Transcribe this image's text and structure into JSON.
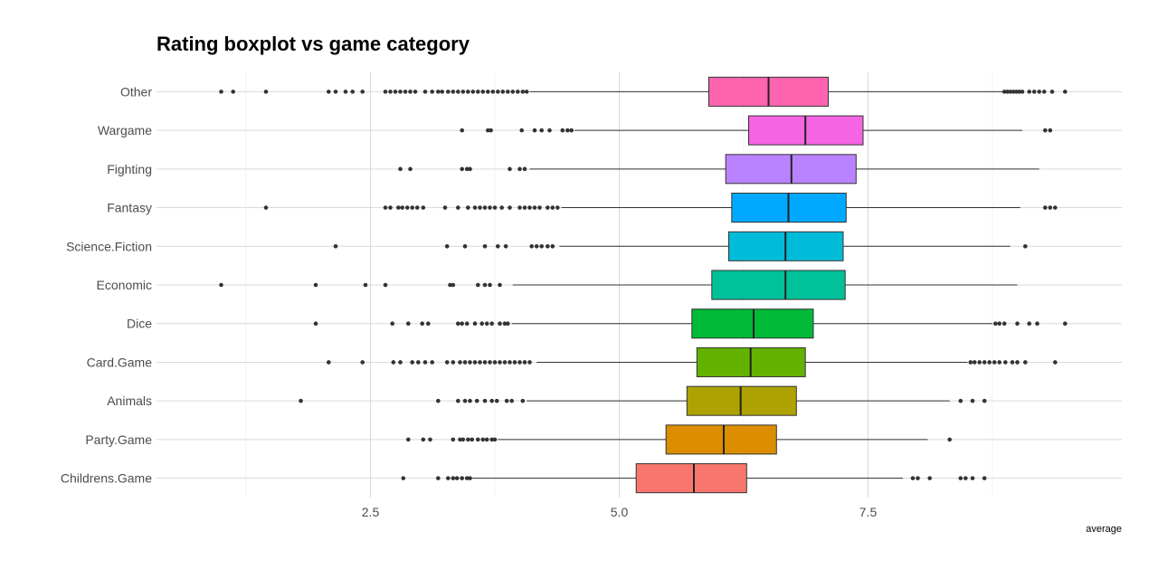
{
  "chart_data": {
    "type": "boxplot",
    "title": "Rating boxplot vs game category",
    "xlabel": "average",
    "ylabel": "",
    "xlim": [
      0.35,
      10.05
    ],
    "x_ticks": [
      {
        "value": 2.5,
        "label": "2.5"
      },
      {
        "value": 5.0,
        "label": "5.0"
      },
      {
        "value": 7.5,
        "label": "7.5"
      }
    ],
    "x_minor_gridlines": [
      1.25,
      3.75,
      6.25,
      8.75
    ],
    "grid": true,
    "legend": "none",
    "categories": [
      {
        "name": "Other",
        "color": "#FF64B0",
        "q1": 5.9,
        "median": 6.5,
        "q3": 7.1,
        "whisker_low": 4.1,
        "whisker_high": 8.85,
        "outliers": [
          1.0,
          1.12,
          1.45,
          2.08,
          2.15,
          2.25,
          2.32,
          2.42,
          2.65,
          2.7,
          2.75,
          2.8,
          2.85,
          2.9,
          2.95,
          3.05,
          3.12,
          3.18,
          3.22,
          3.28,
          3.33,
          3.38,
          3.43,
          3.48,
          3.53,
          3.58,
          3.63,
          3.68,
          3.73,
          3.78,
          3.83,
          3.88,
          3.93,
          3.98,
          4.03,
          4.07,
          8.87,
          8.9,
          8.93,
          8.96,
          8.99,
          9.02,
          9.05,
          9.12,
          9.17,
          9.22,
          9.27,
          9.35,
          9.48
        ]
      },
      {
        "name": "Wargame",
        "color": "#F564E3",
        "q1": 6.3,
        "median": 6.87,
        "q3": 7.45,
        "whisker_low": 4.55,
        "whisker_high": 9.05,
        "outliers": [
          3.42,
          3.68,
          3.71,
          4.02,
          4.15,
          4.22,
          4.3,
          4.43,
          4.48,
          4.52,
          9.28,
          9.33
        ]
      },
      {
        "name": "Fighting",
        "color": "#B983FF",
        "q1": 6.07,
        "median": 6.73,
        "q3": 7.38,
        "whisker_low": 4.1,
        "whisker_high": 9.22,
        "outliers": [
          2.8,
          2.9,
          3.42,
          3.47,
          3.5,
          3.9,
          4.0,
          4.05
        ]
      },
      {
        "name": "Fantasy",
        "color": "#00A9FF",
        "q1": 6.13,
        "median": 6.7,
        "q3": 7.28,
        "whisker_low": 4.42,
        "whisker_high": 9.03,
        "outliers": [
          1.45,
          2.65,
          2.7,
          2.78,
          2.82,
          2.87,
          2.92,
          2.97,
          3.03,
          3.25,
          3.38,
          3.48,
          3.55,
          3.6,
          3.65,
          3.7,
          3.75,
          3.82,
          3.9,
          4.0,
          4.05,
          4.1,
          4.15,
          4.2,
          4.28,
          4.33,
          4.38,
          9.28,
          9.33,
          9.38
        ]
      },
      {
        "name": "Science.Fiction",
        "color": "#00BCD8",
        "q1": 6.1,
        "median": 6.67,
        "q3": 7.25,
        "whisker_low": 4.4,
        "whisker_high": 8.93,
        "outliers": [
          2.15,
          3.27,
          3.45,
          3.65,
          3.78,
          3.86,
          4.12,
          4.17,
          4.22,
          4.28,
          4.33,
          9.08
        ]
      },
      {
        "name": "Economic",
        "color": "#00C19A",
        "q1": 5.93,
        "median": 6.67,
        "q3": 7.27,
        "whisker_low": 3.93,
        "whisker_high": 9.0,
        "outliers": [
          1.0,
          1.95,
          2.45,
          2.65,
          3.3,
          3.33,
          3.58,
          3.65,
          3.7,
          3.8
        ]
      },
      {
        "name": "Dice",
        "color": "#00BA38",
        "q1": 5.73,
        "median": 6.35,
        "q3": 6.95,
        "whisker_low": 3.92,
        "whisker_high": 8.75,
        "outliers": [
          1.95,
          2.72,
          2.88,
          3.02,
          3.08,
          3.38,
          3.42,
          3.47,
          3.55,
          3.62,
          3.67,
          3.72,
          3.8,
          3.85,
          3.88,
          8.78,
          8.82,
          8.87,
          9.0,
          9.12,
          9.2,
          9.48
        ]
      },
      {
        "name": "Card.Game",
        "color": "#64B200",
        "q1": 5.78,
        "median": 6.32,
        "q3": 6.87,
        "whisker_low": 4.17,
        "whisker_high": 8.5,
        "outliers": [
          2.08,
          2.42,
          2.73,
          2.8,
          2.92,
          2.98,
          3.05,
          3.12,
          3.27,
          3.33,
          3.4,
          3.45,
          3.5,
          3.55,
          3.6,
          3.65,
          3.7,
          3.75,
          3.8,
          3.85,
          3.9,
          3.95,
          4.0,
          4.05,
          4.1,
          8.53,
          8.57,
          8.62,
          8.67,
          8.72,
          8.77,
          8.82,
          8.88,
          8.95,
          9.0,
          9.08,
          9.38
        ]
      },
      {
        "name": "Animals",
        "color": "#AEA200",
        "q1": 5.68,
        "median": 6.22,
        "q3": 6.78,
        "whisker_low": 4.07,
        "whisker_high": 8.32,
        "outliers": [
          1.8,
          3.18,
          3.38,
          3.45,
          3.5,
          3.57,
          3.65,
          3.72,
          3.77,
          3.87,
          3.92,
          4.03,
          8.43,
          8.55,
          8.67
        ]
      },
      {
        "name": "Party.Game",
        "color": "#DB8E00",
        "q1": 5.47,
        "median": 6.05,
        "q3": 6.58,
        "whisker_low": 3.78,
        "whisker_high": 8.1,
        "outliers": [
          2.88,
          3.03,
          3.1,
          3.33,
          3.4,
          3.43,
          3.48,
          3.52,
          3.58,
          3.63,
          3.67,
          3.72,
          3.75,
          8.32
        ]
      },
      {
        "name": "Childrens.Game",
        "color": "#F8766D",
        "q1": 5.17,
        "median": 5.75,
        "q3": 6.28,
        "whisker_low": 3.5,
        "whisker_high": 7.85,
        "outliers": [
          2.83,
          3.18,
          3.28,
          3.33,
          3.37,
          3.42,
          3.47,
          3.5,
          7.95,
          8.0,
          8.12,
          8.43,
          8.48,
          8.55,
          8.67
        ]
      }
    ]
  }
}
